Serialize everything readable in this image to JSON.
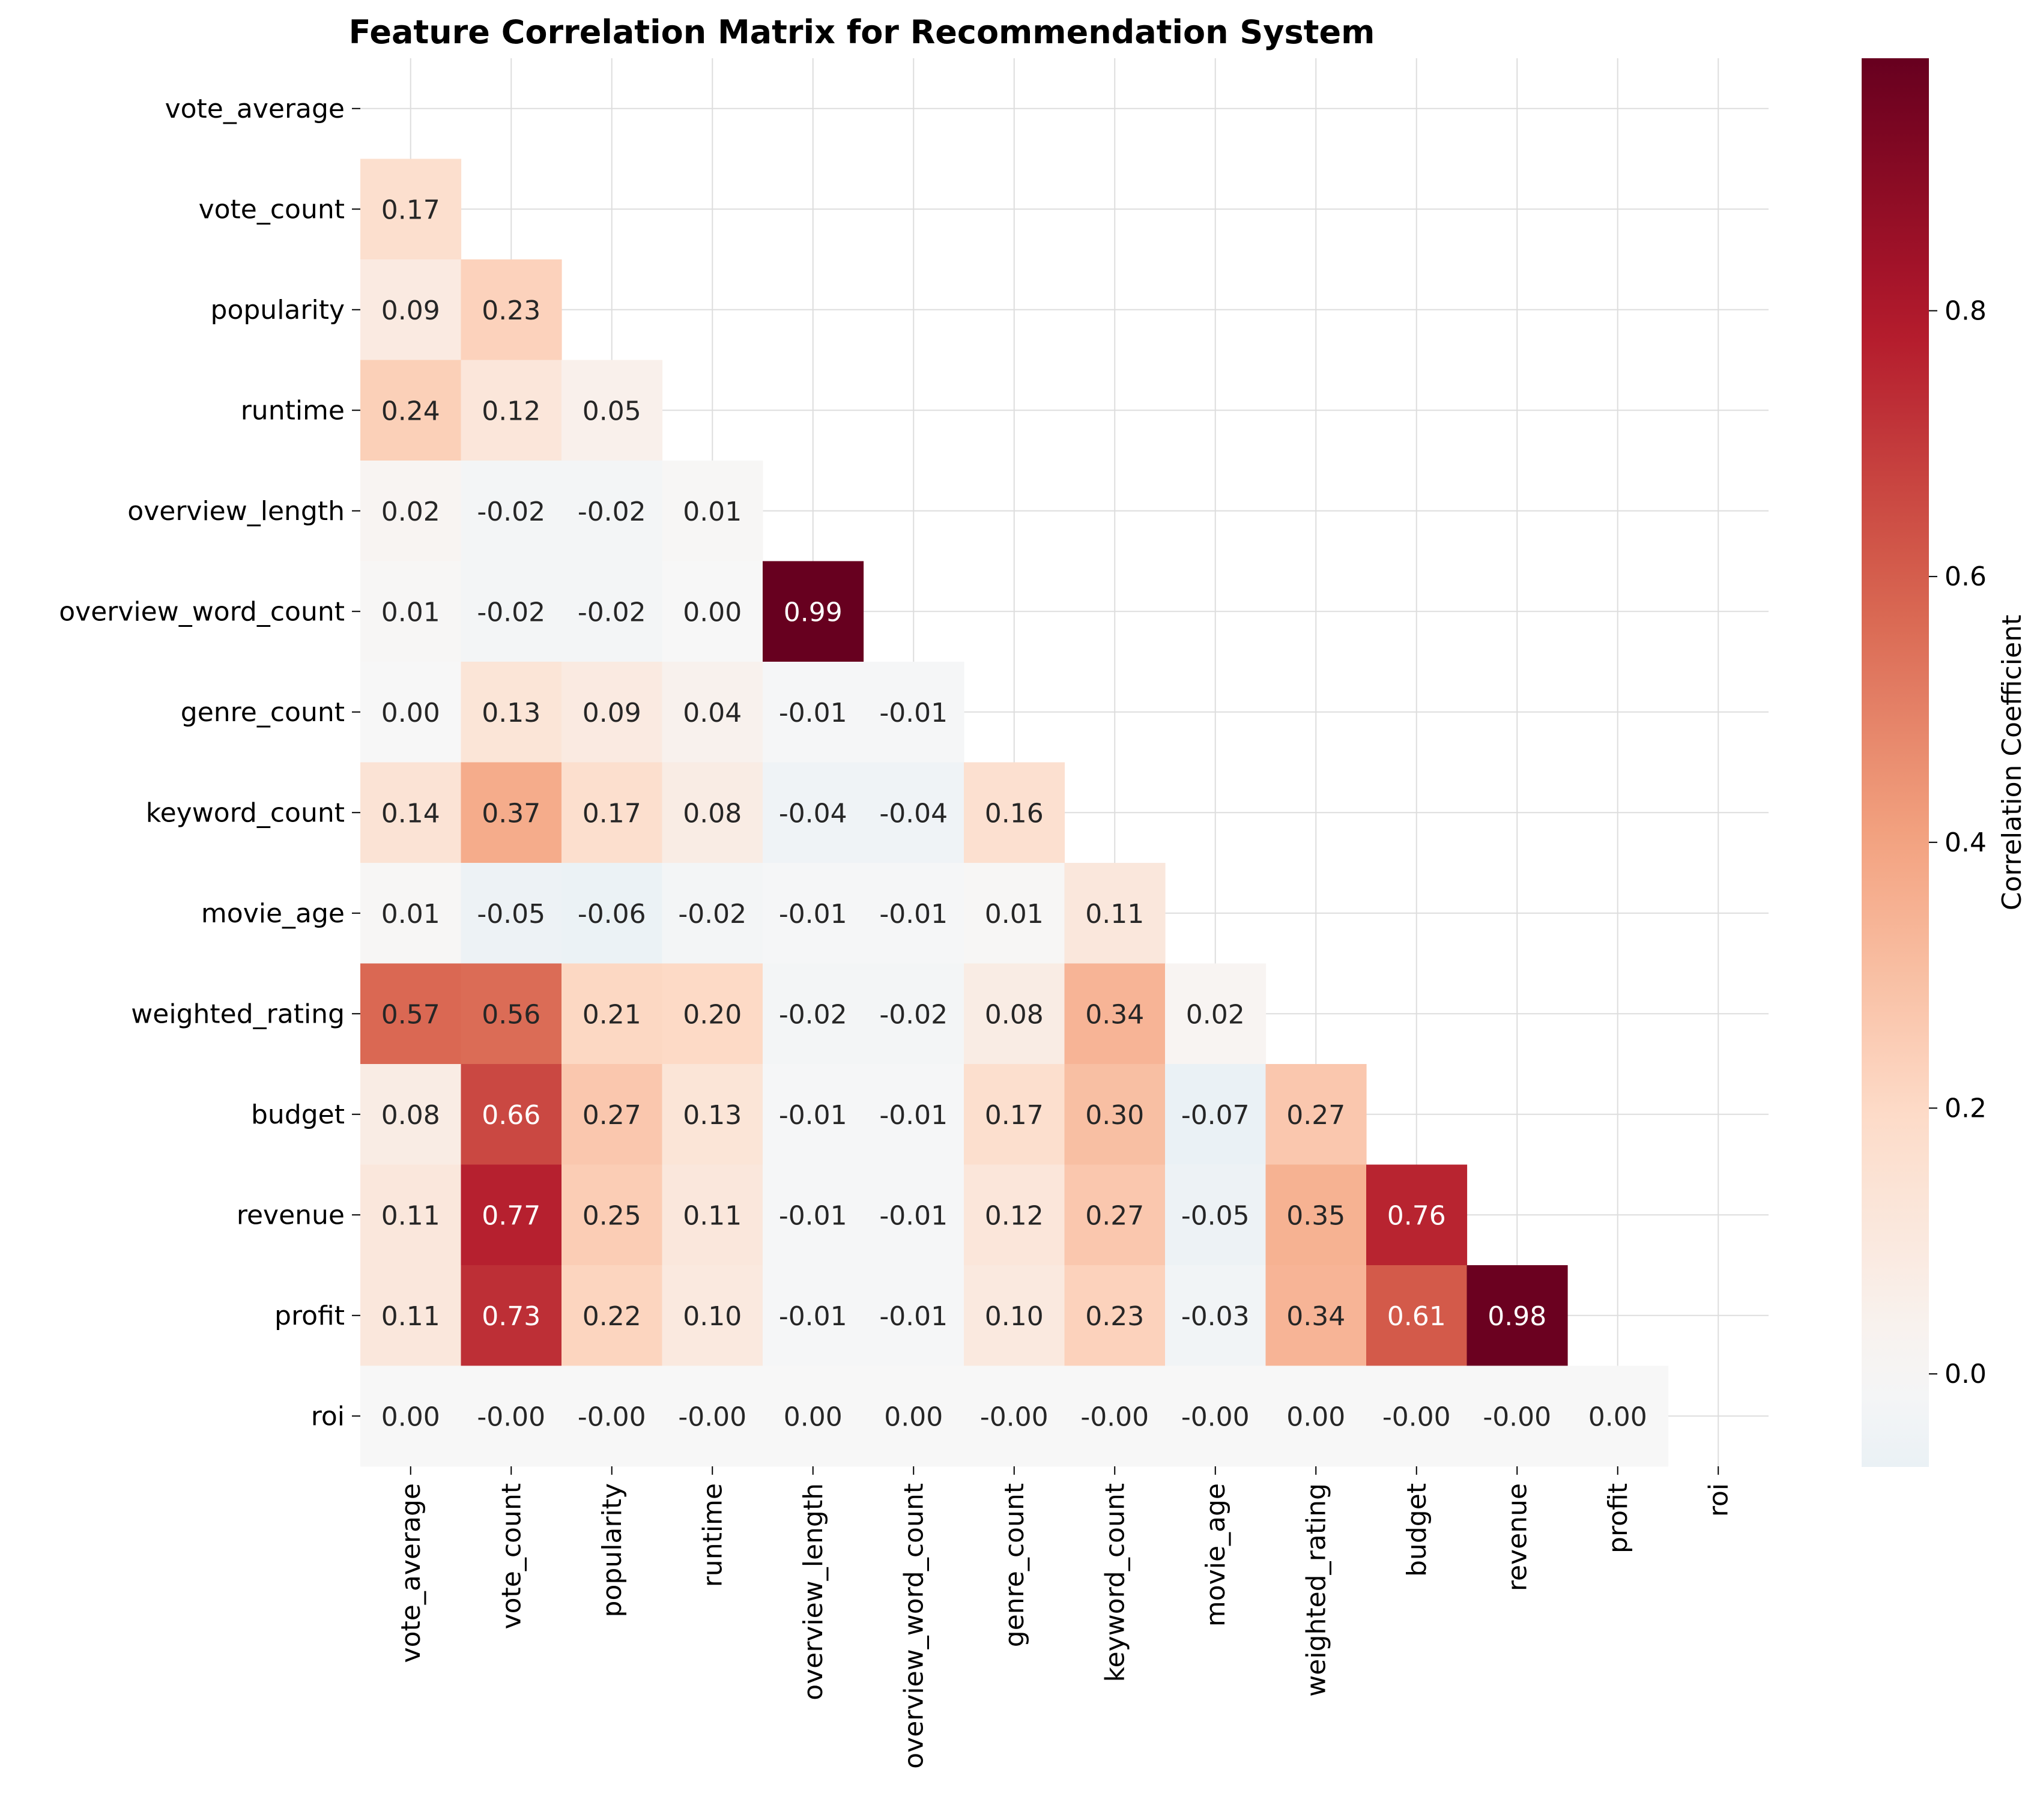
{
  "chart_data": {
    "type": "heatmap",
    "title": "Feature Correlation Matrix for Recommendation System",
    "features": [
      "vote_average",
      "vote_count",
      "popularity",
      "runtime",
      "overview_length",
      "overview_word_count",
      "genre_count",
      "keyword_count",
      "movie_age",
      "weighted_rating",
      "budget",
      "revenue",
      "profit",
      "roi"
    ],
    "mask": "upper-triangle-including-diagonal",
    "values": [
      [],
      [
        "0.17"
      ],
      [
        "0.09",
        "0.23"
      ],
      [
        "0.24",
        "0.12",
        "0.05"
      ],
      [
        "0.02",
        "-0.02",
        "-0.02",
        "0.01"
      ],
      [
        "0.01",
        "-0.02",
        "-0.02",
        "0.00",
        "0.99"
      ],
      [
        "0.00",
        "0.13",
        "0.09",
        "0.04",
        "-0.01",
        "-0.01"
      ],
      [
        "0.14",
        "0.37",
        "0.17",
        "0.08",
        "-0.04",
        "-0.04",
        "0.16"
      ],
      [
        "0.01",
        "-0.05",
        "-0.06",
        "-0.02",
        "-0.01",
        "-0.01",
        "0.01",
        "0.11"
      ],
      [
        "0.57",
        "0.56",
        "0.21",
        "0.20",
        "-0.02",
        "-0.02",
        "0.08",
        "0.34",
        "0.02"
      ],
      [
        "0.08",
        "0.66",
        "0.27",
        "0.13",
        "-0.01",
        "-0.01",
        "0.17",
        "0.30",
        "-0.07",
        "0.27"
      ],
      [
        "0.11",
        "0.77",
        "0.25",
        "0.11",
        "-0.01",
        "-0.01",
        "0.12",
        "0.27",
        "-0.05",
        "0.35",
        "0.76"
      ],
      [
        "0.11",
        "0.73",
        "0.22",
        "0.10",
        "-0.01",
        "-0.01",
        "0.10",
        "0.23",
        "-0.03",
        "0.34",
        "0.61",
        "0.98"
      ],
      [
        "0.00",
        "-0.00",
        "-0.00",
        "-0.00",
        "0.00",
        "0.00",
        "-0.00",
        "-0.00",
        "-0.00",
        "0.00",
        "-0.00",
        "-0.00",
        "0.00"
      ]
    ],
    "colormap": "RdBu_r",
    "color_range": [
      -0.07,
      0.99
    ],
    "colorbar": {
      "label": "Correlation Coefficient",
      "ticks": [
        "0.0",
        "0.2",
        "0.4",
        "0.6",
        "0.8"
      ]
    },
    "grid": true
  }
}
